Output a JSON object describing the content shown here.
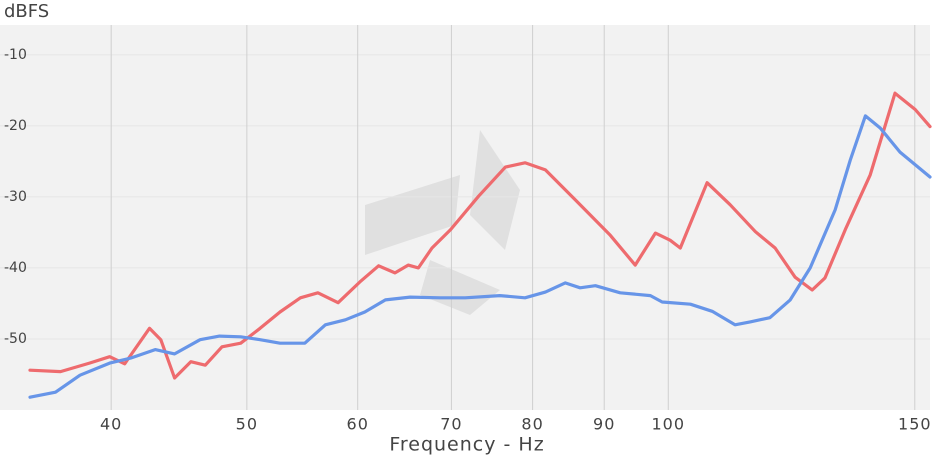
{
  "chart_data": {
    "type": "line",
    "title": "dBFS",
    "x_label": "Frequency - Hz",
    "x_log": true,
    "grid": true,
    "xlim": [
      35,
      153.8
    ],
    "ylim": [
      -60,
      -5.8
    ],
    "xticks": [
      40,
      50,
      60,
      70,
      80,
      90,
      100,
      150
    ],
    "yticks": [
      -10,
      -20,
      -30,
      -40,
      -50
    ],
    "series": [
      {
        "color": "#ee6b6e",
        "x": [
          35.0,
          36.8,
          38.6,
          39.9,
          40.9,
          42.6,
          43.4,
          44.4,
          45.6,
          46.7,
          48.0,
          49.5,
          51.1,
          52.8,
          54.6,
          56.2,
          58.1,
          60.2,
          62.1,
          63.8,
          65.2,
          66.3,
          67.8,
          69.9,
          73.2,
          76.5,
          79.0,
          81.7,
          85.8,
          90.9,
          94.7,
          97.9,
          100.3,
          102.0,
          106.6,
          110.7,
          115.4,
          119.2,
          123.2,
          126.7,
          129.4,
          133.8,
          139.4,
          145.2,
          150.1,
          153.8
        ],
        "values": [
          -54.4,
          -54.6,
          -53.4,
          -52.5,
          -53.5,
          -48.5,
          -50.1,
          -55.5,
          -53.2,
          -53.7,
          -51.1,
          -50.6,
          -48.5,
          -46.2,
          -44.2,
          -43.5,
          -44.9,
          -42.0,
          -39.7,
          -40.7,
          -39.6,
          -40.0,
          -37.2,
          -34.6,
          -29.9,
          -25.8,
          -25.2,
          -26.2,
          -30.4,
          -35.4,
          -39.6,
          -35.1,
          -36.1,
          -37.2,
          -28.0,
          -31.1,
          -34.9,
          -37.2,
          -41.3,
          -43.1,
          -41.4,
          -34.6,
          -26.9,
          -15.4,
          -17.7,
          -20.1
        ]
      },
      {
        "color": "#6795e8",
        "x": [
          35.0,
          36.5,
          38.0,
          39.9,
          41.3,
          43.0,
          44.4,
          46.3,
          47.8,
          49.5,
          51.1,
          52.8,
          55.0,
          56.9,
          58.8,
          60.7,
          62.8,
          65.4,
          68.7,
          71.6,
          75.8,
          79.0,
          81.7,
          84.4,
          86.5,
          88.7,
          92.4,
          97.1,
          99.0,
          103.7,
          107.5,
          111.6,
          114.4,
          118.2,
          122.2,
          126.3,
          131.6,
          134.9,
          138.3,
          141.7,
          146.4,
          153.8
        ],
        "values": [
          -58.2,
          -57.5,
          -55.1,
          -53.4,
          -52.7,
          -51.5,
          -52.1,
          -50.1,
          -49.6,
          -49.7,
          -50.1,
          -50.6,
          -50.6,
          -48.0,
          -47.3,
          -46.2,
          -44.5,
          -44.1,
          -44.2,
          -44.2,
          -43.9,
          -44.2,
          -43.4,
          -42.1,
          -42.8,
          -42.5,
          -43.5,
          -43.9,
          -44.8,
          -45.1,
          -46.1,
          -48.0,
          -47.6,
          -47.0,
          -44.5,
          -40.0,
          -31.8,
          -24.8,
          -18.6,
          -20.3,
          -23.7,
          -27.2
        ]
      }
    ]
  }
}
